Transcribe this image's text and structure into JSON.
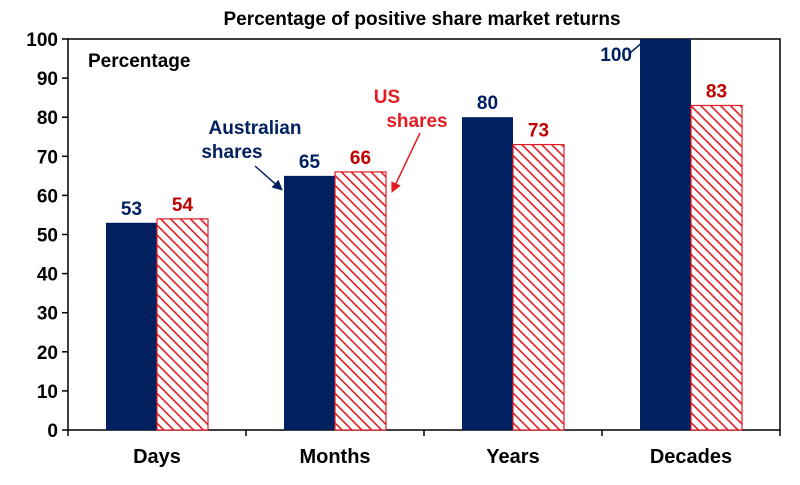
{
  "chart_data": {
    "type": "bar",
    "title": "Percentage of positive share market returns",
    "ylabel": "Percentage",
    "xlabel": "",
    "ylim": [
      0,
      100
    ],
    "yticks": [
      0,
      10,
      20,
      30,
      40,
      50,
      60,
      70,
      80,
      90,
      100
    ],
    "grid": false,
    "legend": "none",
    "categories": [
      "Days",
      "Months",
      "Years",
      "Decades"
    ],
    "series": [
      {
        "name": "Australian shares",
        "color": "#002060",
        "fill": "solid",
        "values": [
          53,
          65,
          80,
          100
        ]
      },
      {
        "name": "US shares",
        "color": "#E31B23",
        "fill": "hatched",
        "values": [
          54,
          66,
          73,
          83
        ]
      }
    ],
    "data_labels": [
      [
        "53",
        "65",
        "80",
        "100"
      ],
      [
        "54",
        "66",
        "73",
        "83"
      ]
    ],
    "annotations": [
      {
        "series": 0,
        "lines": [
          "Australian",
          "shares"
        ]
      },
      {
        "series": 1,
        "lines": [
          "US",
          "shares"
        ]
      }
    ]
  }
}
